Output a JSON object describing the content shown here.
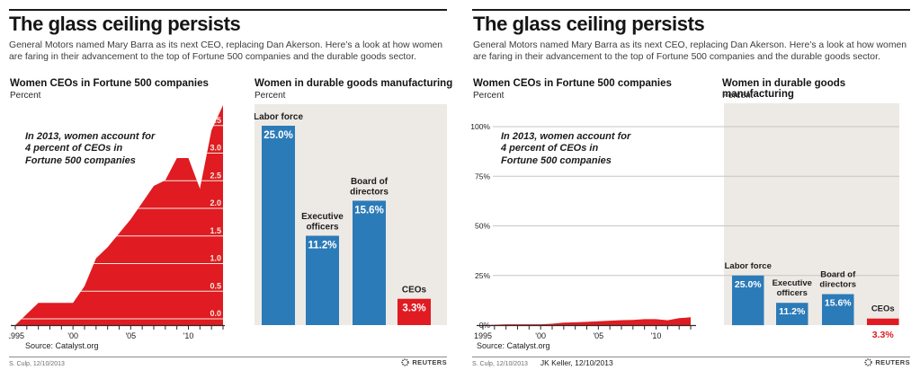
{
  "colors": {
    "red": "#e01b22",
    "blue": "#2c7bb9",
    "panel": "#edeae5",
    "cream": "#f4ebdc",
    "grid": "#c8c6c2",
    "axis": "#2b2b2b"
  },
  "panels": [
    {
      "title": "The glass ceiling persists",
      "subtitle": "General Motors named Mary Barra as its next CEO, replacing Dan Akerson. Here’s a look at how women are faring in their advancement to the top of Fortune 500 companies and the durable goods sector.",
      "source": "Source: Catalyst.org",
      "credits": [
        "S. Culp, 12/10/2013"
      ],
      "brand": "REUTERS"
    },
    {
      "title": "The glass ceiling persists",
      "subtitle": "General Motors named Mary Barra as its next CEO, replacing Dan Akerson. Here’s a look at how women are faring in their advancement to the top of Fortune 500 companies and the durable goods sector.",
      "source": "Source: Catalyst.org",
      "credits": [
        "S. Culp, 12/10/2013",
        "JK Keller, 12/10/2013"
      ],
      "brand": "REUTERS"
    }
  ],
  "chart_data": [
    {
      "id": "fortune500_area_original",
      "type": "area",
      "title": "Women CEOs in Fortune 500 companies",
      "unit": "Percent",
      "annotation": "In 2013, women account for\n4 percent of CEOs in\nFortune 500 companies",
      "x": [
        1995,
        1996,
        1997,
        1998,
        1999,
        2000,
        2001,
        2002,
        2003,
        2004,
        2005,
        2006,
        2007,
        2008,
        2009,
        2010,
        2011,
        2012,
        2013
      ],
      "values": [
        0.0,
        0.2,
        0.4,
        0.4,
        0.4,
        0.4,
        0.7,
        1.2,
        1.4,
        1.65,
        1.9,
        2.2,
        2.5,
        2.6,
        3.0,
        3.0,
        2.45,
        3.5,
        3.95
      ],
      "ylim": [
        0,
        4
      ],
      "yticks": [
        0,
        0.5,
        1,
        1.5,
        2,
        2.5,
        3,
        3.5
      ],
      "ytick_labels": [
        "0.0",
        "0.5",
        "1.0",
        "1.5",
        "2.0",
        "2.5",
        "3.0",
        "3.5"
      ],
      "xticks": [
        {
          "year": 1995,
          "label": "1995"
        },
        {
          "year": 2000,
          "label": "'00"
        },
        {
          "year": 2005,
          "label": "'05"
        },
        {
          "year": 2010,
          "label": "'10"
        }
      ],
      "grid": "cream gridlines drawn only inside the red area, labels inside area at right edge",
      "series_color": "red"
    },
    {
      "id": "durable_goods_bars_original",
      "type": "bar",
      "title": "Women in durable goods manufacturing",
      "unit": "Percent",
      "categories": [
        "Labor force",
        "Executive officers",
        "Board of directors",
        "CEOs"
      ],
      "values": [
        25.0,
        11.2,
        15.6,
        3.3
      ],
      "value_labels": [
        "25.0%",
        "11.2%",
        "15.6%",
        "3.3%"
      ],
      "bar_colors": [
        "blue",
        "blue",
        "blue",
        "red"
      ],
      "ylim": [
        0,
        27.6
      ],
      "grid": "no axis shown, gray background panel"
    },
    {
      "id": "fortune500_area_rescaled",
      "type": "area",
      "title": "Women CEOs in Fortune 500 companies",
      "unit": "Percent",
      "annotation": "In 2013, women account for\n4 percent of CEOs in\nFortune 500 companies",
      "x": [
        1995,
        1996,
        1997,
        1998,
        1999,
        2000,
        2001,
        2002,
        2003,
        2004,
        2005,
        2006,
        2007,
        2008,
        2009,
        2010,
        2011,
        2012,
        2013
      ],
      "values": [
        0.0,
        0.2,
        0.4,
        0.4,
        0.4,
        0.4,
        0.7,
        1.2,
        1.4,
        1.65,
        1.9,
        2.2,
        2.5,
        2.6,
        3.0,
        3.0,
        2.45,
        3.5,
        3.95
      ],
      "ylim": [
        0,
        112
      ],
      "yticks": [
        0,
        25,
        50,
        75,
        100
      ],
      "ytick_labels": [
        "0%",
        "25%",
        "50%",
        "75%",
        "100%"
      ],
      "xticks": [
        {
          "year": 1995,
          "label": "1995"
        },
        {
          "year": 2000,
          "label": "'00"
        },
        {
          "year": 2005,
          "label": "'05"
        },
        {
          "year": 2010,
          "label": "'10"
        }
      ],
      "grid": "gray gridlines at 25/50/75/100 spanning area chart and bar panel",
      "series_color": "red"
    },
    {
      "id": "durable_goods_bars_rescaled",
      "type": "bar",
      "title": "Women in durable goods manufacturing",
      "unit": "Percent",
      "categories": [
        "Labor force",
        "Executive officers",
        "Board of directors",
        "CEOs"
      ],
      "values": [
        25.0,
        11.2,
        15.6,
        3.3
      ],
      "value_labels": [
        "25.0%",
        "11.2%",
        "15.6%",
        "3.3%"
      ],
      "bar_colors": [
        "blue",
        "blue",
        "blue",
        "red"
      ],
      "ylim": [
        0,
        112
      ],
      "grid": "shares 0-100% axis with area chart, gray background panel"
    }
  ]
}
